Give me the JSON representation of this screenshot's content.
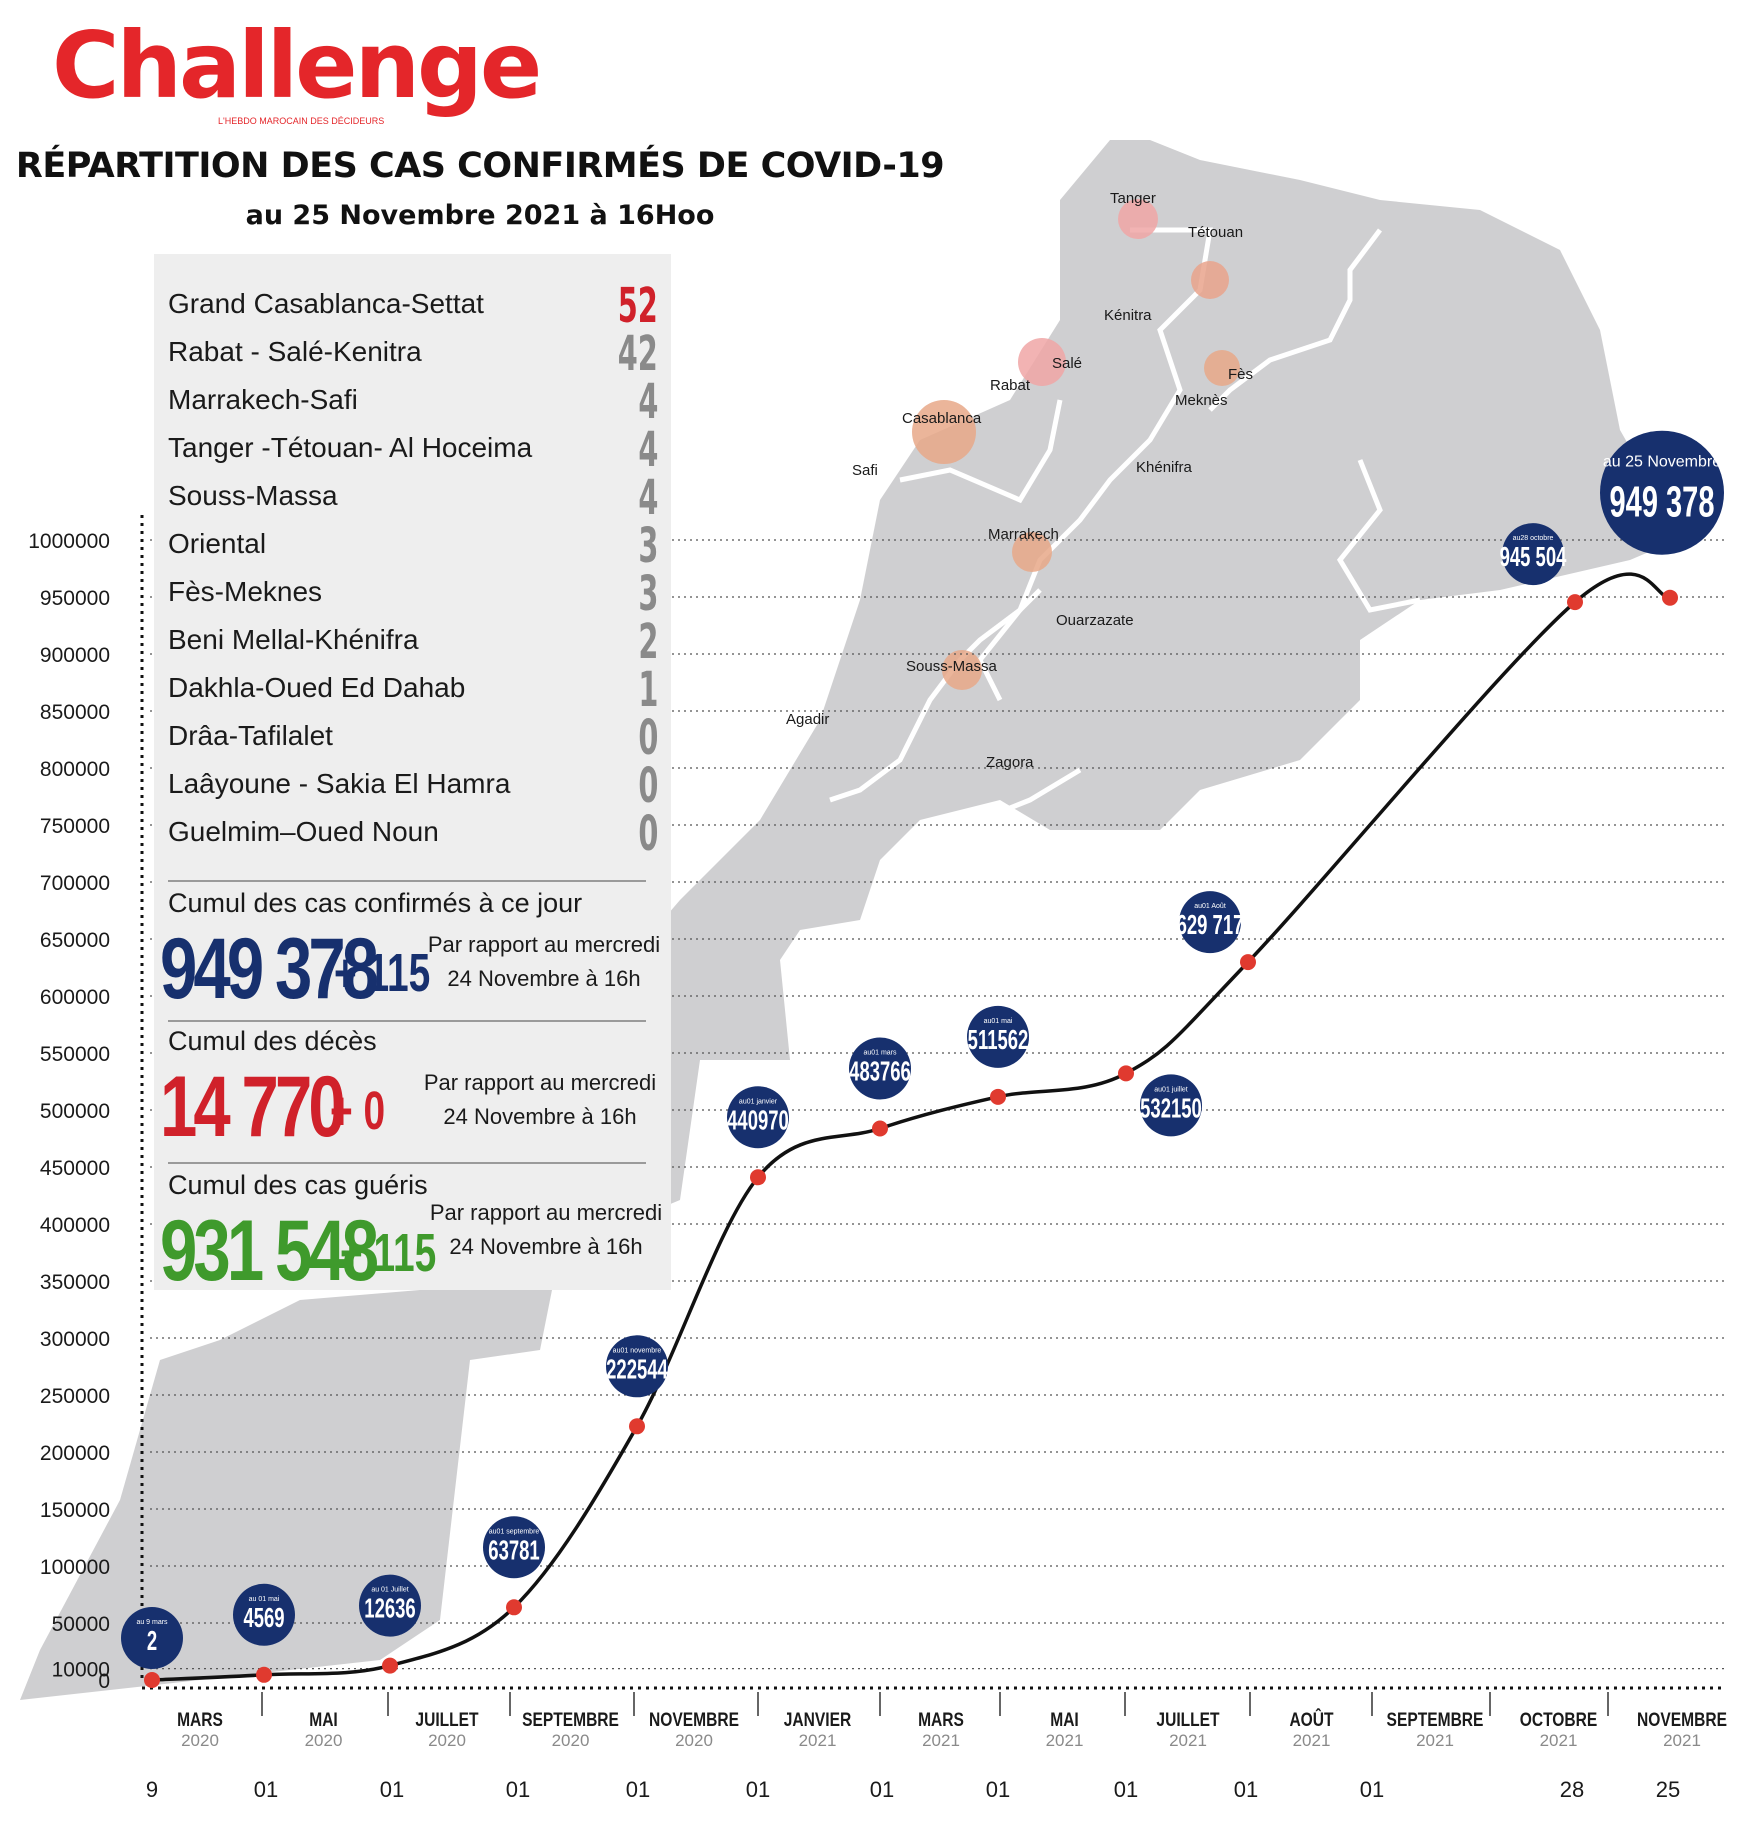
{
  "brand": {
    "name": "Challenge",
    "tagline": "L'HEBDO MAROCAIN DES DÉCIDEURS"
  },
  "title": "RÉPARTITION DES CAS CONFIRMÉS DE COVID-19",
  "subtitle": "au 25 Novembre 2021 à 16Hoo",
  "colors": {
    "brand_red": "#e4262a",
    "navy": "#17306e",
    "dot_red": "#e03a2f",
    "green": "#3f9a2c",
    "map_grey": "#cfcfd1",
    "panel_grey": "#eeeeee"
  },
  "regions": [
    {
      "name": "Grand Casablanca-Settat",
      "count": "52"
    },
    {
      "name": "Rabat - Salé-Kenitra",
      "count": "42"
    },
    {
      "name": "Marrakech-Safi",
      "count": "4"
    },
    {
      "name": "Tanger -Tétouan- Al Hoceima",
      "count": "4"
    },
    {
      "name": "Souss-Massa",
      "count": "4"
    },
    {
      "name": "Oriental",
      "count": "3"
    },
    {
      "name": "Fès-Meknes",
      "count": "3"
    },
    {
      "name": "Beni Mellal-Khénifra",
      "count": "2"
    },
    {
      "name": "Dakhla-Oued Ed Dahab",
      "count": "1"
    },
    {
      "name": "Drâa-Tafilalet",
      "count": "0"
    },
    {
      "name": "Laâyoune - Sakia El Hamra",
      "count": "0"
    },
    {
      "name": "Guelmim–Oued Noun",
      "count": "0"
    }
  ],
  "stats": {
    "confirmed": {
      "label": "Cumul des cas confirmés à ce jour",
      "value": "949 378",
      "delta": "+ 115",
      "note1": "Par rapport au mercredi",
      "note2": "24 Novembre à 16h"
    },
    "deaths": {
      "label": "Cumul des décès",
      "value": "14 770",
      "delta": "+ 0",
      "note1": "Par rapport au mercredi",
      "note2": "24 Novembre à 16h"
    },
    "recovered": {
      "label": "Cumul des cas guéris",
      "value": "931 548",
      "delta": "+ 115",
      "note1": "Par rapport au mercredi",
      "note2": "24 Novembre à 16h"
    }
  },
  "map_cities": [
    {
      "name": "Tanger",
      "bubble": "pink"
    },
    {
      "name": "Tétouan",
      "bubble": "pink"
    },
    {
      "name": "Kénitra",
      "bubble": "none"
    },
    {
      "name": "Salé",
      "bubble": "pink"
    },
    {
      "name": "Rabat",
      "bubble": "none"
    },
    {
      "name": "Fès",
      "bubble": "tan"
    },
    {
      "name": "Meknès",
      "bubble": "none"
    },
    {
      "name": "Casablanca",
      "bubble": "tan-large"
    },
    {
      "name": "Safi",
      "bubble": "none"
    },
    {
      "name": "Khénifra",
      "bubble": "none"
    },
    {
      "name": "Marrakech",
      "bubble": "tan"
    },
    {
      "name": "Ouarzazate",
      "bubble": "none"
    },
    {
      "name": "Souss-Massa",
      "bubble": "tan"
    },
    {
      "name": "Agadir",
      "bubble": "none"
    },
    {
      "name": "Zagora",
      "bubble": "none"
    }
  ],
  "chart_data": {
    "type": "line",
    "title": "",
    "xlabel": "",
    "ylabel": "",
    "ylim": [
      0,
      1000000
    ],
    "y_ticks": [
      "1000000",
      "950000",
      "900000",
      "850000",
      "800000",
      "750000",
      "700000",
      "650000",
      "600000",
      "550000",
      "500000",
      "450000",
      "400000",
      "350000",
      "300000",
      "250000",
      "200000",
      "150000",
      "100000",
      "50000",
      "10000",
      "0"
    ],
    "grid": "dotted horizontal",
    "months": [
      {
        "month": "MARS",
        "year": "2020"
      },
      {
        "month": "MAI",
        "year": "2020"
      },
      {
        "month": "JUILLET",
        "year": "2020"
      },
      {
        "month": "SEPTEMBRE",
        "year": "2020"
      },
      {
        "month": "NOVEMBRE",
        "year": "2020"
      },
      {
        "month": "JANVIER",
        "year": "2021"
      },
      {
        "month": "MARS",
        "year": "2021"
      },
      {
        "month": "MAI",
        "year": "2021"
      },
      {
        "month": "JUILLET",
        "year": "2021"
      },
      {
        "month": "AOÛT",
        "year": "2021"
      },
      {
        "month": "SEPTEMBRE",
        "year": "2021"
      },
      {
        "month": "OCTOBRE",
        "year": "2021"
      },
      {
        "month": "NOVEMBRE",
        "year": "2021"
      }
    ],
    "day_labels": [
      "9",
      "01",
      "01",
      "01",
      "01",
      "01",
      "01",
      "01",
      "01",
      "01",
      "01",
      "28",
      "25"
    ],
    "series": [
      {
        "points": [
          {
            "date": "2020-03-09",
            "value": 2,
            "caption": "au 9 mars",
            "label": "2"
          },
          {
            "date": "2020-05-01",
            "value": 4569,
            "caption": "au 01 mai",
            "label": "4569"
          },
          {
            "date": "2020-07-01",
            "value": 12636,
            "caption": "au 01 Juillet",
            "label": "12636"
          },
          {
            "date": "2020-09-01",
            "value": 63781,
            "caption": "au01 septembre",
            "label": "63781"
          },
          {
            "date": "2020-11-01",
            "value": 222544,
            "caption": "au01 novembre",
            "label": "222544"
          },
          {
            "date": "2021-01-01",
            "value": 440970,
            "caption": "au01 janvier",
            "label": "440970"
          },
          {
            "date": "2021-03-01",
            "value": 483766,
            "caption": "au01 mars",
            "label": "483766"
          },
          {
            "date": "2021-05-01",
            "value": 511562,
            "caption": "au01 mai",
            "label": "511562"
          },
          {
            "date": "2021-07-01",
            "value": 532150,
            "caption": "au01 juillet",
            "label": "532150"
          },
          {
            "date": "2021-08-01",
            "value": 629717,
            "caption": "au01 Août",
            "label": "629 717"
          },
          {
            "date": "2021-10-28",
            "value": 945504,
            "caption": "au28 octobre",
            "label": "945 504"
          },
          {
            "date": "2021-11-25",
            "value": 949378,
            "caption": "au 25 Novembre",
            "label": "949 378"
          }
        ]
      }
    ]
  }
}
